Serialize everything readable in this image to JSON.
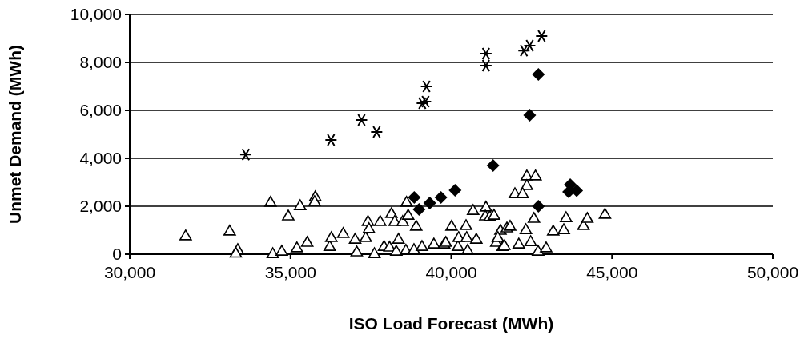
{
  "chart_data": {
    "type": "scatter",
    "xlabel": "ISO Load Forecast (MWh)",
    "ylabel": "Unmet Demand (MWh)",
    "xlim": [
      30000,
      50000
    ],
    "xticks": [
      {
        "value": 30000,
        "label": "30,000"
      },
      {
        "value": 35000,
        "label": "35,000"
      },
      {
        "value": 40000,
        "label": "40,000"
      },
      {
        "value": 45000,
        "label": "45,000"
      },
      {
        "value": 50000,
        "label": "50,000"
      }
    ],
    "ylim": [
      0,
      10000
    ],
    "yticks": [
      0,
      {
        "value": 2000,
        "label": "2,000"
      },
      {
        "value": 4000,
        "label": "4,000"
      },
      {
        "value": 6000,
        "label": "6,000"
      },
      {
        "value": 8000,
        "label": "8,000"
      },
      {
        "value": 10000,
        "label": "10,000"
      }
    ],
    "grid": "y",
    "series": [
      {
        "color": "#000000",
        "marker": "cross",
        "x": [
          33610,
          36260,
          37210,
          37680,
          39100,
          39200,
          39230,
          41080,
          41080,
          42260,
          42440,
          42810
        ],
        "values": [
          4160,
          4770,
          5600,
          5100,
          6300,
          6370,
          7000,
          7870,
          8370,
          8490,
          8700,
          9100
        ]
      },
      {
        "color": "#000000",
        "marker": "diamond",
        "x": [
          42710,
          42440,
          41300,
          40120,
          39680,
          39330,
          39000,
          38850,
          43700,
          43900,
          43650,
          42710
        ],
        "values": [
          7500,
          5800,
          3700,
          2670,
          2370,
          2130,
          1870,
          2370,
          2900,
          2650,
          2600,
          2000
        ]
      },
      {
        "color": "#000000",
        "marker": "triangle",
        "x": [
          31740,
          33110,
          33360,
          33300,
          34380,
          34930,
          35300,
          35770,
          35750,
          34450,
          34730,
          35200,
          35520,
          36220,
          36270,
          36640,
          37010,
          37060,
          37340,
          37410,
          37440,
          37790,
          37610,
          37910,
          38080,
          38140,
          38240,
          38360,
          38490,
          38610,
          38660,
          38910,
          38290,
          38590,
          38840,
          39090,
          39460,
          39780,
          39830,
          40010,
          40210,
          40230,
          40460,
          40480,
          40510,
          40780,
          40680,
          41080,
          41060,
          41200,
          41330,
          41400,
          41530,
          41600,
          41730,
          41450,
          42350,
          42620,
          42350,
          41980,
          42220,
          42570,
          41830,
          42320,
          42470,
          42100,
          42700,
          42950,
          43570,
          43500,
          43170,
          44110,
          44230,
          44780,
          41650
        ],
        "values": [
          770,
          970,
          200,
          50,
          2170,
          1600,
          2030,
          2400,
          2200,
          30,
          130,
          270,
          500,
          330,
          700,
          870,
          630,
          100,
          700,
          1370,
          1070,
          1370,
          30,
          330,
          300,
          1700,
          1370,
          630,
          1370,
          2170,
          1630,
          1170,
          130,
          170,
          200,
          330,
          430,
          430,
          500,
          1170,
          330,
          700,
          1200,
          700,
          170,
          630,
          1830,
          1970,
          1600,
          1570,
          1630,
          500,
          1000,
          330,
          1100,
          700,
          3270,
          3270,
          2870,
          2530,
          2530,
          1500,
          1170,
          1030,
          530,
          430,
          130,
          270,
          1530,
          1030,
          970,
          1200,
          1500,
          1670,
          370
        ]
      }
    ]
  }
}
